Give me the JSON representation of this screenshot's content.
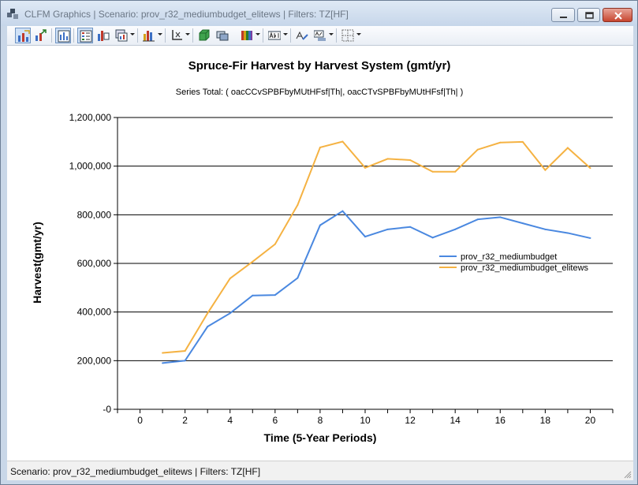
{
  "window": {
    "title": "CLFM Graphics | Scenario: prov_r32_mediumbudget_elitews | Filters: TZ[HF]"
  },
  "toolbar": {
    "buttons": [
      {
        "name": "chart-wizard-icon",
        "active": true
      },
      {
        "name": "export-chart-icon",
        "active": false
      },
      {
        "name": "data-grid-icon",
        "active": true
      },
      {
        "name": "legend-toggle-icon",
        "active": true
      },
      {
        "name": "series-list-icon",
        "active": false
      },
      {
        "name": "gallery-dropdown-icon",
        "active": false
      },
      {
        "name": "chart-type-dropdown-icon",
        "active": false
      },
      {
        "name": "axes-dropdown-icon",
        "active": false
      },
      {
        "name": "3d-view-icon",
        "active": false
      },
      {
        "name": "rotate-icon",
        "active": false
      },
      {
        "name": "palette-dropdown-icon",
        "active": false
      },
      {
        "name": "data-labels-dropdown-icon",
        "active": false
      },
      {
        "name": "axis-title-icon",
        "active": false
      },
      {
        "name": "font-dropdown-icon",
        "active": false
      },
      {
        "name": "gridlines-dropdown-icon",
        "active": false
      }
    ]
  },
  "status": {
    "text": "Scenario: prov_r32_mediumbudget_elitews | Filters: TZ[HF]"
  },
  "colors": {
    "series1": "#4a88e0",
    "series2": "#f5b242",
    "gridline": "#000000"
  },
  "chart_data": {
    "type": "line",
    "title": "Spruce-Fir Harvest by Harvest System (gmt/yr)",
    "subtitle": "Series Total: ( oacCCvSPBFbyMUtHFsf|Th|, oacCTvSPBFbyMUtHFsf|Th| )",
    "xlabel": "Time (5-Year Periods)",
    "ylabel": "Harvest(gmt/yr)",
    "xlim": [
      -1,
      21
    ],
    "ylim": [
      0,
      1200000
    ],
    "x_ticks": [
      "0",
      "2",
      "4",
      "6",
      "8",
      "10",
      "12",
      "14",
      "16",
      "18",
      "20"
    ],
    "y_ticks": [
      "-0",
      "200,000",
      "400,000",
      "600,000",
      "800,000",
      "1,000,000",
      "1,200,000"
    ],
    "grid": "horizontal",
    "legend_position": "right",
    "x": [
      1,
      2,
      3,
      4,
      5,
      6,
      7,
      8,
      9,
      10,
      11,
      12,
      13,
      14,
      15,
      16,
      17,
      18,
      19,
      20
    ],
    "series": [
      {
        "name": "prov_r32_mediumbudget",
        "values": [
          190000,
          200000,
          340000,
          395000,
          468000,
          470000,
          540000,
          757000,
          815000,
          710000,
          740000,
          750000,
          706000,
          740000,
          781000,
          790000,
          765000,
          740000,
          725000,
          704000
        ]
      },
      {
        "name": "prov_r32_mediumbudget_elitews",
        "values": [
          232000,
          240000,
          395000,
          538000,
          607000,
          679000,
          840000,
          1077000,
          1101000,
          993000,
          1030000,
          1025000,
          977000,
          977000,
          1068000,
          1097000,
          1100000,
          984000,
          1075000,
          992000
        ]
      }
    ]
  }
}
